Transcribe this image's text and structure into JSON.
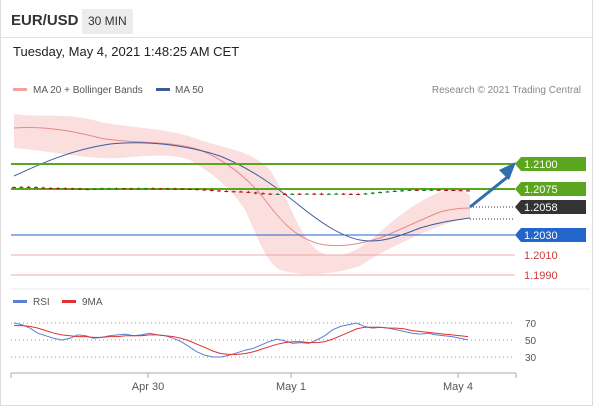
{
  "header": {
    "symbol": "EUR/USD",
    "timeframe": "30 MIN"
  },
  "timestamp": "Tuesday, May 4, 2021 1:48:25 AM CET",
  "legend": {
    "ma20": "MA 20 + Bollinger Bands",
    "ma50": "MA 50",
    "credit": "Research © 2021 Trading Central",
    "rsi": "RSI",
    "rsi_ma": "9MA"
  },
  "colors": {
    "green": "#5ba61e",
    "blue": "#2266cc",
    "dark": "#333333",
    "red_line": "#f0a8a8",
    "band_fill": "#fbdada",
    "ma20": "#e88a8a",
    "ma50": "#3b5c9c",
    "arrow": "#2f6fb0",
    "rsi": "#5b7fd6",
    "rsi_ma": "#e03030"
  },
  "chart_data": [
    {
      "type": "candlestick",
      "x_ticks": [
        "Apr 30",
        "May 1",
        "May 4"
      ],
      "price_levels": [
        {
          "value": "1.2100",
          "kind": "resistance"
        },
        {
          "value": "1.2075",
          "kind": "resistance"
        },
        {
          "value": "1.2058",
          "kind": "current"
        },
        {
          "value": "1.2030",
          "kind": "pivot"
        },
        {
          "value": "1.2010",
          "kind": "support"
        },
        {
          "value": "1.1990",
          "kind": "support"
        }
      ],
      "projection": "up toward 1.2100",
      "close_series": [
        1.2091,
        1.2096,
        1.2094,
        1.2089,
        1.2086,
        1.2084,
        1.2081,
        1.208,
        1.2078,
        1.2074,
        1.2073,
        1.2076,
        1.2079,
        1.208,
        1.2081,
        1.2079,
        1.2078,
        1.2079,
        1.2081,
        1.208,
        1.2079,
        1.2078,
        1.2077,
        1.2075,
        1.2074,
        1.207,
        1.2065,
        1.206,
        1.2055,
        1.2052,
        1.205,
        1.2046,
        1.204,
        1.2032,
        1.2028,
        1.2025,
        1.2026,
        1.2025,
        1.2027,
        1.2026,
        1.2028,
        1.2027,
        1.2026,
        1.2027,
        1.2028,
        1.2026,
        1.2024,
        1.2023,
        1.203,
        1.2038,
        1.2045,
        1.205,
        1.2055,
        1.2062,
        1.2066,
        1.2064,
        1.2066,
        1.2067,
        1.2066,
        1.2065,
        1.2063,
        1.2061,
        1.2058
      ]
    },
    {
      "type": "line",
      "title": "RSI",
      "y_ticks": [
        "70",
        "50",
        "30"
      ],
      "series": [
        {
          "name": "RSI",
          "values": [
            70,
            68,
            64,
            58,
            55,
            52,
            50,
            52,
            56,
            55,
            52,
            53,
            55,
            56,
            57,
            55,
            56,
            58,
            56,
            55,
            52,
            48,
            42,
            36,
            32,
            30,
            30,
            32,
            35,
            38,
            40,
            44,
            48,
            51,
            49,
            46,
            47,
            46,
            50,
            55,
            62,
            66,
            68,
            70,
            66,
            64,
            65,
            64,
            62,
            60,
            58,
            57,
            58,
            56,
            55,
            54,
            52,
            50
          ]
        },
        {
          "name": "9MA",
          "values": [
            67,
            67,
            66,
            64,
            61,
            58,
            56,
            55,
            54,
            54,
            53,
            53,
            54,
            54,
            55,
            55,
            55,
            56,
            56,
            55,
            54,
            52,
            49,
            45,
            41,
            37,
            34,
            33,
            33,
            34,
            36,
            39,
            42,
            45,
            47,
            48,
            48,
            47,
            47,
            48,
            51,
            55,
            59,
            63,
            65,
            65,
            65,
            64,
            64,
            63,
            61,
            60,
            59,
            58,
            57,
            56,
            55,
            54
          ]
        }
      ]
    }
  ]
}
